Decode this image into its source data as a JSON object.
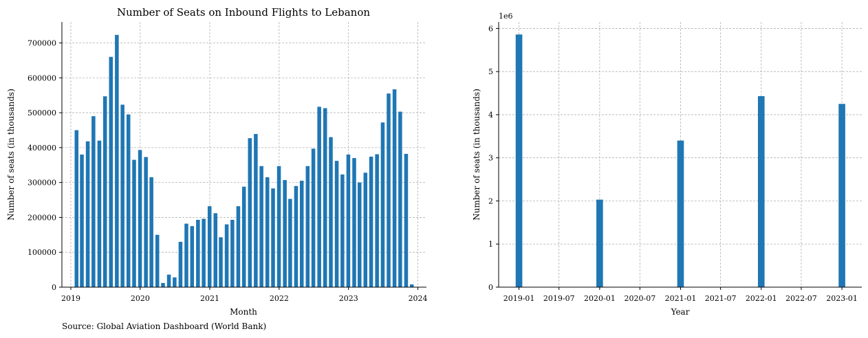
{
  "colors": {
    "bar": "#1f77b4",
    "grid": "#b0b0b0",
    "axis": "#000000"
  },
  "source_text": "Source: Global Aviation Dashboard (World Bank)",
  "chart_data": [
    {
      "type": "bar",
      "title": "Number of Seats on Inbound Flights to Lebanon",
      "xlabel": "Month",
      "ylabel": "Number of seats (in thousands)",
      "x_tick_labels": [
        "2019",
        "2020",
        "2021",
        "2022",
        "2023",
        "2024"
      ],
      "y_tick_labels": [
        "0",
        "100000",
        "200000",
        "300000",
        "400000",
        "500000",
        "600000",
        "700000"
      ],
      "ylim": [
        0,
        760000
      ],
      "grid": true,
      "categories": [
        "2019-01",
        "2019-02",
        "2019-03",
        "2019-04",
        "2019-05",
        "2019-06",
        "2019-07",
        "2019-08",
        "2019-09",
        "2019-10",
        "2019-11",
        "2019-12",
        "2020-01",
        "2020-02",
        "2020-03",
        "2020-04",
        "2020-05",
        "2020-06",
        "2020-07",
        "2020-08",
        "2020-09",
        "2020-10",
        "2020-11",
        "2020-12",
        "2021-01",
        "2021-02",
        "2021-03",
        "2021-04",
        "2021-05",
        "2021-06",
        "2021-07",
        "2021-08",
        "2021-09",
        "2021-10",
        "2021-11",
        "2021-12",
        "2022-01",
        "2022-02",
        "2022-03",
        "2022-04",
        "2022-05",
        "2022-06",
        "2022-07",
        "2022-08",
        "2022-09",
        "2022-10",
        "2022-11",
        "2022-12",
        "2023-01",
        "2023-02",
        "2023-03",
        "2023-04",
        "2023-05",
        "2023-06",
        "2023-07",
        "2023-08",
        "2023-09",
        "2023-10",
        "2023-11",
        "2023-12"
      ],
      "values": [
        450000,
        380000,
        418000,
        490000,
        420000,
        547000,
        660000,
        723000,
        523000,
        495000,
        365000,
        393000,
        373000,
        315000,
        150000,
        12000,
        36000,
        28000,
        130000,
        182000,
        175000,
        193000,
        196000,
        232000,
        212000,
        143000,
        180000,
        193000,
        232000,
        288000,
        427000,
        439000,
        347000,
        315000,
        283000,
        347000,
        307000,
        253000,
        290000,
        305000,
        347000,
        397000,
        517000,
        513000,
        430000,
        362000,
        323000,
        380000,
        370000,
        300000,
        328000,
        374000,
        381000,
        472000,
        555000,
        567000,
        503000,
        382000,
        8000,
        0
      ]
    },
    {
      "type": "bar",
      "title": "",
      "xlabel": "Year",
      "ylabel": "Number of seats (in thousands)",
      "y_offset_label": "1e6",
      "x_tick_labels": [
        "2019-01",
        "2019-07",
        "2020-01",
        "2020-07",
        "2021-01",
        "2021-07",
        "2022-01",
        "2022-07",
        "2023-01"
      ],
      "y_tick_labels": [
        "0",
        "1",
        "2",
        "3",
        "4",
        "5",
        "6"
      ],
      "ylim": [
        0,
        6.15
      ],
      "grid": true,
      "categories": [
        "2019-01",
        "2020-01",
        "2021-01",
        "2022-01",
        "2023-01"
      ],
      "values": [
        5.86,
        2.03,
        3.4,
        4.43,
        4.25
      ]
    }
  ]
}
